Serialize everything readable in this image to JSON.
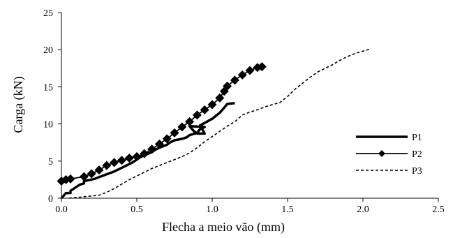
{
  "chart_data": {
    "type": "line",
    "xlabel": "Flecha a meio vão (mm)",
    "ylabel": "Carga (kN)",
    "xlim": [
      0,
      2.5
    ],
    "ylim": [
      0,
      25
    ],
    "x_ticks": [
      "0.0",
      "0.5",
      "1.0",
      "1.5",
      "2.0",
      "2.5"
    ],
    "y_ticks": [
      "0",
      "5",
      "10",
      "15",
      "20",
      "25"
    ],
    "x_tick_values": [
      0,
      0.5,
      1.0,
      1.5,
      2.0,
      2.5
    ],
    "y_tick_values": [
      0,
      5,
      10,
      15,
      20,
      25
    ],
    "grid": false,
    "legend_position": "right",
    "series": [
      {
        "name": "P1",
        "style": "solid-thick",
        "x": [
          0.0,
          0.03,
          0.06,
          0.06,
          0.12,
          0.15,
          0.15,
          0.22,
          0.27,
          0.35,
          0.4,
          0.47,
          0.5,
          0.52,
          0.55,
          0.6,
          0.62,
          0.65,
          0.7,
          0.72,
          0.75,
          0.8,
          0.83,
          0.85,
          0.9,
          0.92,
          0.95,
          0.85,
          0.88,
          0.9,
          0.95,
          0.95,
          0.92,
          1.0,
          1.05,
          1.08,
          1.1,
          1.15
        ],
        "y": [
          0.0,
          0.7,
          0.7,
          1.0,
          1.8,
          2.0,
          2.3,
          2.6,
          3.0,
          3.6,
          4.1,
          4.8,
          5.2,
          5.5,
          5.8,
          6.2,
          6.5,
          6.8,
          7.2,
          7.5,
          7.8,
          8.0,
          8.2,
          8.5,
          8.8,
          9.3,
          9.6,
          9.7,
          9.0,
          8.7,
          8.7,
          8.7,
          9.8,
          10.7,
          11.5,
          12.2,
          12.7,
          12.8
        ]
      },
      {
        "name": "P2",
        "style": "solid-diamond",
        "x": [
          0.0,
          0.03,
          0.06,
          0.15,
          0.2,
          0.25,
          0.3,
          0.35,
          0.4,
          0.45,
          0.5,
          0.55,
          0.6,
          0.65,
          0.7,
          0.75,
          0.8,
          0.85,
          0.9,
          0.95,
          1.0,
          1.05,
          1.08,
          1.1,
          1.15,
          1.2,
          1.25,
          1.3,
          1.33
        ],
        "y": [
          2.3,
          2.5,
          2.6,
          2.9,
          3.3,
          3.8,
          4.4,
          4.8,
          5.1,
          5.4,
          5.6,
          6.0,
          6.6,
          7.3,
          8.0,
          8.8,
          9.6,
          10.3,
          11.2,
          11.9,
          12.6,
          13.5,
          14.4,
          15.1,
          15.9,
          16.6,
          17.2,
          17.6,
          17.7
        ]
      },
      {
        "name": "P3",
        "style": "dashed",
        "x": [
          0.05,
          0.1,
          0.15,
          0.2,
          0.25,
          0.3,
          0.35,
          0.4,
          0.45,
          0.5,
          0.55,
          0.6,
          0.65,
          0.7,
          0.75,
          0.8,
          0.85,
          0.9,
          0.95,
          1.0,
          1.05,
          1.1,
          1.15,
          1.2,
          1.25,
          1.3,
          1.35,
          1.4,
          1.45,
          1.5,
          1.55,
          1.6,
          1.65,
          1.7,
          1.75,
          1.8,
          1.85,
          1.9,
          1.95,
          2.0,
          2.05
        ],
        "y": [
          0.0,
          0.1,
          0.2,
          0.3,
          0.4,
          0.8,
          1.3,
          1.9,
          2.5,
          3.0,
          3.5,
          4.0,
          4.4,
          4.8,
          5.2,
          5.6,
          6.1,
          6.8,
          7.6,
          8.3,
          9.0,
          9.7,
          10.3,
          11.2,
          11.6,
          11.9,
          12.3,
          12.6,
          12.9,
          13.7,
          14.7,
          15.5,
          16.3,
          17.0,
          17.5,
          18.0,
          18.6,
          19.1,
          19.5,
          19.8,
          20.1
        ]
      }
    ]
  }
}
